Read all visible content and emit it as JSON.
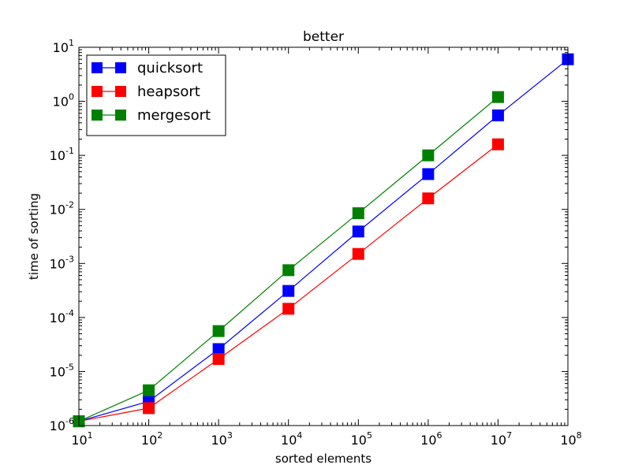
{
  "chart_data": {
    "type": "line",
    "title": "better",
    "xlabel": "sorted elements",
    "ylabel": "time of sorting",
    "x_scale": "log",
    "y_scale": "log",
    "xlim": [
      10,
      100000000
    ],
    "ylim": [
      1e-06,
      10
    ],
    "x_ticks": [
      {
        "base": "10",
        "exp": "1",
        "value": 10
      },
      {
        "base": "10",
        "exp": "2",
        "value": 100
      },
      {
        "base": "10",
        "exp": "3",
        "value": 1000
      },
      {
        "base": "10",
        "exp": "4",
        "value": 10000
      },
      {
        "base": "10",
        "exp": "5",
        "value": 100000
      },
      {
        "base": "10",
        "exp": "6",
        "value": 1000000
      },
      {
        "base": "10",
        "exp": "7",
        "value": 10000000
      },
      {
        "base": "10",
        "exp": "8",
        "value": 100000000
      }
    ],
    "y_ticks": [
      {
        "base": "10",
        "exp": "-6",
        "value": 1e-06
      },
      {
        "base": "10",
        "exp": "-5",
        "value": 1e-05
      },
      {
        "base": "10",
        "exp": "-4",
        "value": 0.0001
      },
      {
        "base": "10",
        "exp": "-3",
        "value": 0.001
      },
      {
        "base": "10",
        "exp": "-2",
        "value": 0.01
      },
      {
        "base": "10",
        "exp": "-1",
        "value": 0.1
      },
      {
        "base": "10",
        "exp": "0",
        "value": 1
      },
      {
        "base": "10",
        "exp": "1",
        "value": 10
      }
    ],
    "grid": false,
    "legend_position": "top-left",
    "series": [
      {
        "name": "quicksort",
        "color": "#0000ff",
        "marker": "square",
        "x": [
          10,
          100,
          1000,
          10000,
          100000,
          1000000,
          10000000,
          100000000
        ],
        "y": [
          1.2e-06,
          2.8e-06,
          2.6e-05,
          0.00031,
          0.0039,
          0.045,
          0.55,
          6.0
        ]
      },
      {
        "name": "heapsort",
        "color": "#ff0000",
        "marker": "square",
        "x": [
          10,
          100,
          1000,
          10000,
          100000,
          1000000,
          10000000
        ],
        "y": [
          1.2e-06,
          2.1e-06,
          1.7e-05,
          0.000145,
          0.0015,
          0.016,
          0.16
        ]
      },
      {
        "name": "mergesort",
        "color": "#008000",
        "marker": "square",
        "x": [
          10,
          100,
          1000,
          10000,
          100000,
          1000000,
          10000000
        ],
        "y": [
          1.2e-06,
          4.5e-06,
          5.6e-05,
          0.00075,
          0.0085,
          0.1,
          1.2
        ]
      }
    ]
  }
}
